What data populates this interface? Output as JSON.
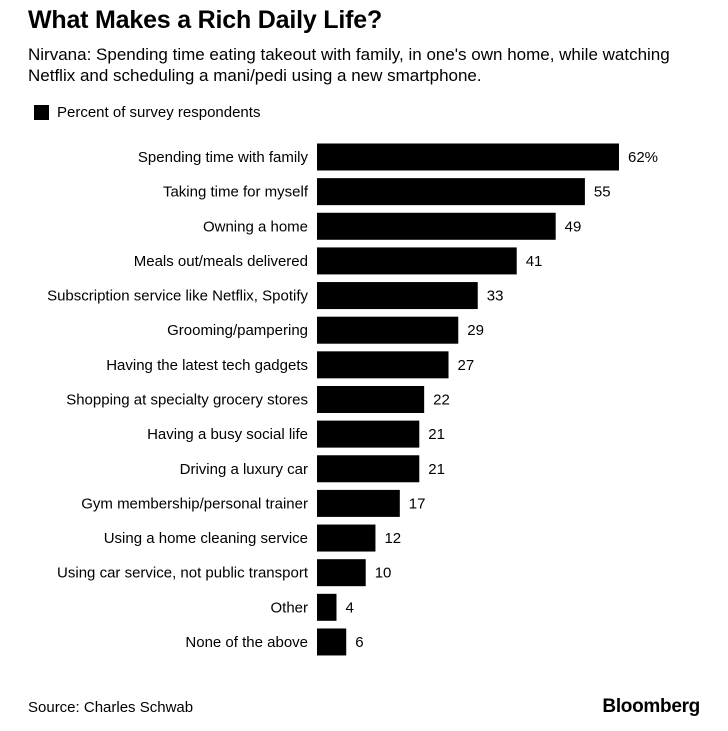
{
  "chart_data": {
    "type": "bar",
    "orientation": "horizontal",
    "title": "What Makes a Rich Daily Life?",
    "subtitle": "Nirvana: Spending time eating takeout with family, in one's own home, while watching Netflix and scheduling a mani/pedi using a new smartphone.",
    "legend": "Percent of survey respondents",
    "legend_placement": "top-left",
    "grid": false,
    "xlim": [
      0,
      62
    ],
    "categories": [
      "Spending time with family",
      "Taking time for myself",
      "Owning a home",
      "Meals out/meals delivered",
      "Subscription service like Netflix, Spotify",
      "Grooming/pampering",
      "Having the latest tech gadgets",
      "Shopping at specialty grocery stores",
      "Having a busy social life",
      "Driving a luxury car",
      "Gym membership/personal trainer",
      "Using a home cleaning service",
      "Using car service, not public transport",
      "Other",
      "None of the above"
    ],
    "values": [
      62,
      55,
      49,
      41,
      33,
      29,
      27,
      22,
      21,
      21,
      17,
      12,
      10,
      4,
      6
    ],
    "value_labels": [
      "62%",
      "55",
      "49",
      "41",
      "33",
      "29",
      "27",
      "22",
      "21",
      "21",
      "17",
      "12",
      "10",
      "4",
      "6"
    ],
    "bar_color": "#000000"
  },
  "footer": {
    "source": "Source: Charles Schwab",
    "brand": "Bloomberg"
  }
}
